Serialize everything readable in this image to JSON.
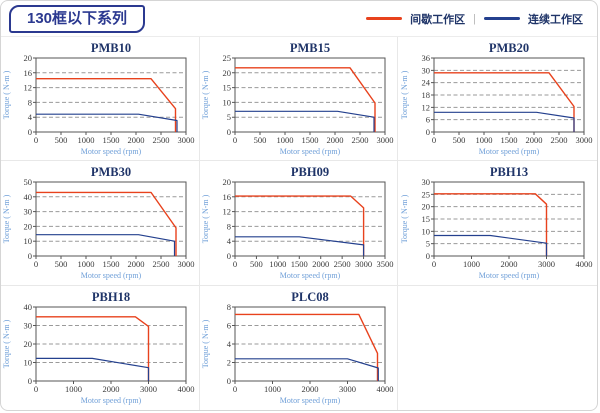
{
  "header": {
    "title": "130框以下系列",
    "legend": [
      {
        "label": "间歇工作区",
        "color": "#e8421d"
      },
      {
        "label": "连续工作区",
        "color": "#24408e"
      }
    ],
    "legend_separator": "|"
  },
  "colors": {
    "intermittent_line": "#e8421d",
    "continuous_line": "#24408e",
    "chart_title_text": "#1f3468",
    "axis_label_text": "#6f9fd8",
    "header_accent": "#2b3990"
  },
  "chart_data": [
    {
      "type": "line",
      "title": "PMB10",
      "xlabel": "Motor speed (rpm)",
      "ylabel": "Torque ( N-m )",
      "xlim": [
        0,
        3000
      ],
      "ylim": [
        0,
        20
      ],
      "xticks": [
        0,
        500,
        1000,
        1500,
        2000,
        2500,
        3000
      ],
      "yticks": [
        0,
        4,
        8,
        12,
        16,
        20
      ],
      "series": [
        {
          "name": "间歇工作区",
          "color": "#e8421d",
          "points": [
            [
              0,
              14.4
            ],
            [
              2300,
              14.4
            ],
            [
              2790,
              6.3
            ],
            [
              2790,
              0
            ]
          ]
        },
        {
          "name": "连续工作区",
          "color": "#24408e",
          "points": [
            [
              0,
              4.8
            ],
            [
              2050,
              4.8
            ],
            [
              2820,
              3.1
            ],
            [
              2820,
              0
            ]
          ]
        }
      ]
    },
    {
      "type": "line",
      "title": "PMB15",
      "xlabel": "Motor speed (rpm)",
      "ylabel": "Torque ( N-m )",
      "xlim": [
        0,
        3000
      ],
      "ylim": [
        0,
        25
      ],
      "xticks": [
        0,
        500,
        1000,
        1500,
        2000,
        2500,
        3000
      ],
      "yticks": [
        0,
        5,
        10,
        15,
        20,
        25
      ],
      "series": [
        {
          "name": "间歇工作区",
          "color": "#e8421d",
          "points": [
            [
              0,
              21.7
            ],
            [
              2300,
              21.7
            ],
            [
              2800,
              9.8
            ],
            [
              2800,
              0
            ]
          ]
        },
        {
          "name": "连续工作区",
          "color": "#24408e",
          "points": [
            [
              0,
              7
            ],
            [
              2050,
              7
            ],
            [
              2780,
              5
            ],
            [
              2780,
              0
            ]
          ]
        }
      ]
    },
    {
      "type": "line",
      "title": "PMB20",
      "xlabel": "Motor speed (rpm)",
      "ylabel": "Torque ( N-m )",
      "xlim": [
        0,
        3000
      ],
      "ylim": [
        0,
        36
      ],
      "xticks": [
        0,
        500,
        1000,
        1500,
        2000,
        2500,
        3000
      ],
      "yticks": [
        0,
        6,
        12,
        18,
        24,
        30,
        36
      ],
      "series": [
        {
          "name": "间歇工作区",
          "color": "#e8421d",
          "points": [
            [
              0,
              28.8
            ],
            [
              2300,
              28.8
            ],
            [
              2800,
              12.4
            ],
            [
              2800,
              0
            ]
          ]
        },
        {
          "name": "连续工作区",
          "color": "#24408e",
          "points": [
            [
              0,
              9.6
            ],
            [
              2050,
              9.6
            ],
            [
              2800,
              6.8
            ],
            [
              2800,
              0
            ]
          ]
        }
      ]
    },
    {
      "type": "line",
      "title": "PMB30",
      "xlabel": "Motor speed (rpm)",
      "ylabel": "Torque ( N-m )",
      "xlim": [
        0,
        3000
      ],
      "ylim": [
        0,
        50
      ],
      "xticks": [
        0,
        500,
        1000,
        1500,
        2000,
        2500,
        3000
      ],
      "yticks": [
        0,
        10,
        20,
        30,
        40,
        50
      ],
      "series": [
        {
          "name": "间歇工作区",
          "color": "#e8421d",
          "points": [
            [
              0,
              43
            ],
            [
              2300,
              43
            ],
            [
              2800,
              19
            ],
            [
              2800,
              0
            ]
          ]
        },
        {
          "name": "连续工作区",
          "color": "#24408e",
          "points": [
            [
              0,
              14.4
            ],
            [
              2050,
              14.4
            ],
            [
              2770,
              10
            ],
            [
              2770,
              0
            ]
          ]
        }
      ]
    },
    {
      "type": "line",
      "title": "PBH09",
      "xlabel": "Motor speed (rpm)",
      "ylabel": "Torque ( N-m )",
      "xlim": [
        0,
        3500
      ],
      "ylim": [
        0,
        20
      ],
      "xticks": [
        0,
        500,
        1000,
        1500,
        2000,
        2500,
        3000,
        3500
      ],
      "yticks": [
        0,
        4,
        8,
        12,
        16,
        20
      ],
      "series": [
        {
          "name": "间歇工作区",
          "color": "#e8421d",
          "points": [
            [
              0,
              16.2
            ],
            [
              2700,
              16.2
            ],
            [
              3000,
              13
            ],
            [
              3000,
              0
            ]
          ]
        },
        {
          "name": "连续工作区",
          "color": "#24408e",
          "points": [
            [
              0,
              5.2
            ],
            [
              1500,
              5.2
            ],
            [
              3000,
              3
            ],
            [
              3000,
              0
            ]
          ]
        }
      ]
    },
    {
      "type": "line",
      "title": "PBH13",
      "xlabel": "Motor speed (rpm)",
      "ylabel": "Torque ( N-m )",
      "xlim": [
        0,
        4000
      ],
      "ylim": [
        0,
        30
      ],
      "xticks": [
        0,
        1000,
        2000,
        3000,
        4000
      ],
      "yticks": [
        0,
        5,
        10,
        15,
        20,
        25,
        30
      ],
      "series": [
        {
          "name": "间歇工作区",
          "color": "#e8421d",
          "points": [
            [
              0,
              25.2
            ],
            [
              2700,
              25.2
            ],
            [
              3000,
              21
            ],
            [
              3000,
              0
            ]
          ]
        },
        {
          "name": "连续工作区",
          "color": "#24408e",
          "points": [
            [
              0,
              8.3
            ],
            [
              1500,
              8.3
            ],
            [
              3000,
              5.2
            ],
            [
              3000,
              0
            ]
          ]
        }
      ]
    },
    {
      "type": "line",
      "title": "PBH18",
      "xlabel": "Motor speed (rpm)",
      "ylabel": "Torque ( N-m )",
      "xlim": [
        0,
        4000
      ],
      "ylim": [
        0,
        40
      ],
      "xticks": [
        0,
        1000,
        2000,
        3000,
        4000
      ],
      "yticks": [
        0,
        10,
        20,
        30,
        40
      ],
      "series": [
        {
          "name": "间歇工作区",
          "color": "#e8421d",
          "points": [
            [
              0,
              34.7
            ],
            [
              2650,
              34.7
            ],
            [
              3000,
              29.5
            ],
            [
              3000,
              0
            ]
          ]
        },
        {
          "name": "连续工作区",
          "color": "#24408e",
          "points": [
            [
              0,
              12.2
            ],
            [
              1500,
              12.2
            ],
            [
              3000,
              7.2
            ],
            [
              3000,
              0
            ]
          ]
        }
      ]
    },
    {
      "type": "line",
      "title": "PLC08",
      "xlabel": "Motor speed (rpm)",
      "ylabel": "Torque ( N-m )",
      "xlim": [
        0,
        4000
      ],
      "ylim": [
        0,
        8
      ],
      "xticks": [
        0,
        1000,
        2000,
        3000,
        4000
      ],
      "yticks": [
        0,
        2,
        4,
        6,
        8
      ],
      "series": [
        {
          "name": "间歇工作区",
          "color": "#e8421d",
          "points": [
            [
              0,
              7.2
            ],
            [
              3300,
              7.2
            ],
            [
              3800,
              3
            ],
            [
              3800,
              0
            ]
          ]
        },
        {
          "name": "连续工作区",
          "color": "#24408e",
          "points": [
            [
              0,
              2.4
            ],
            [
              3000,
              2.4
            ],
            [
              3820,
              1.4
            ],
            [
              3820,
              0
            ]
          ]
        }
      ]
    }
  ]
}
